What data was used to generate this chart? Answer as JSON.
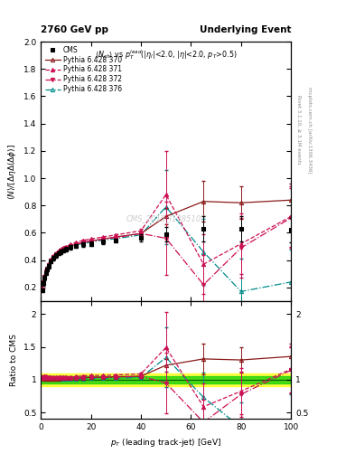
{
  "title_left": "2760 GeV pp",
  "title_right": "Underlying Event",
  "watermark": "CMS_2015_I1385107",
  "cms_x": [
    0.5,
    1.0,
    1.5,
    2.0,
    2.5,
    3.0,
    4.0,
    5.0,
    6.0,
    7.0,
    8.0,
    9.0,
    10.0,
    12.0,
    14.0,
    17.0,
    20.0,
    25.0,
    30.0,
    40.0,
    50.0,
    65.0,
    80.0,
    100.0
  ],
  "cms_y": [
    0.18,
    0.23,
    0.27,
    0.305,
    0.33,
    0.355,
    0.39,
    0.415,
    0.435,
    0.45,
    0.46,
    0.47,
    0.48,
    0.495,
    0.505,
    0.515,
    0.52,
    0.535,
    0.545,
    0.565,
    0.59,
    0.63,
    0.63,
    0.62
  ],
  "cms_yerr": [
    0.015,
    0.015,
    0.015,
    0.015,
    0.015,
    0.015,
    0.015,
    0.015,
    0.015,
    0.015,
    0.015,
    0.015,
    0.015,
    0.015,
    0.015,
    0.015,
    0.015,
    0.015,
    0.015,
    0.025,
    0.055,
    0.09,
    0.09,
    0.09
  ],
  "p370_x": [
    0.5,
    1.0,
    1.5,
    2.0,
    2.5,
    3.0,
    4.0,
    5.0,
    6.0,
    7.0,
    8.0,
    9.0,
    10.0,
    12.0,
    14.0,
    17.0,
    20.0,
    25.0,
    30.0,
    40.0,
    50.0,
    65.0,
    80.0,
    100.0
  ],
  "p370_y": [
    0.185,
    0.235,
    0.275,
    0.31,
    0.335,
    0.36,
    0.395,
    0.42,
    0.44,
    0.455,
    0.47,
    0.48,
    0.49,
    0.505,
    0.515,
    0.53,
    0.54,
    0.555,
    0.57,
    0.595,
    0.72,
    0.83,
    0.82,
    0.84
  ],
  "p370_yerr": [
    0.003,
    0.003,
    0.003,
    0.003,
    0.003,
    0.003,
    0.003,
    0.003,
    0.003,
    0.003,
    0.003,
    0.003,
    0.003,
    0.003,
    0.003,
    0.003,
    0.003,
    0.003,
    0.003,
    0.008,
    0.06,
    0.15,
    0.12,
    0.12
  ],
  "p371_x": [
    0.5,
    1.0,
    1.5,
    2.0,
    2.5,
    3.0,
    4.0,
    5.0,
    6.0,
    7.0,
    8.0,
    9.0,
    10.0,
    12.0,
    14.0,
    17.0,
    20.0,
    25.0,
    30.0,
    40.0,
    50.0,
    65.0,
    80.0,
    100.0
  ],
  "p371_y": [
    0.185,
    0.24,
    0.285,
    0.32,
    0.345,
    0.37,
    0.405,
    0.43,
    0.45,
    0.465,
    0.48,
    0.49,
    0.5,
    0.515,
    0.53,
    0.545,
    0.555,
    0.57,
    0.585,
    0.615,
    0.88,
    0.37,
    0.52,
    0.72
  ],
  "p371_yerr": [
    0.003,
    0.003,
    0.003,
    0.003,
    0.003,
    0.003,
    0.003,
    0.003,
    0.003,
    0.003,
    0.003,
    0.003,
    0.003,
    0.003,
    0.003,
    0.003,
    0.003,
    0.003,
    0.003,
    0.015,
    0.32,
    0.22,
    0.22,
    0.22
  ],
  "p372_x": [
    0.5,
    1.0,
    1.5,
    2.0,
    2.5,
    3.0,
    4.0,
    5.0,
    6.0,
    7.0,
    8.0,
    9.0,
    10.0,
    12.0,
    14.0,
    17.0,
    20.0,
    25.0,
    30.0,
    40.0,
    50.0,
    65.0,
    80.0,
    100.0
  ],
  "p372_y": [
    0.185,
    0.24,
    0.28,
    0.315,
    0.34,
    0.365,
    0.4,
    0.425,
    0.445,
    0.46,
    0.472,
    0.482,
    0.492,
    0.507,
    0.517,
    0.53,
    0.54,
    0.555,
    0.565,
    0.595,
    0.56,
    0.22,
    0.49,
    0.71
  ],
  "p372_yerr": [
    0.003,
    0.003,
    0.003,
    0.003,
    0.003,
    0.003,
    0.003,
    0.003,
    0.003,
    0.003,
    0.003,
    0.003,
    0.003,
    0.003,
    0.003,
    0.003,
    0.003,
    0.003,
    0.003,
    0.015,
    0.27,
    0.22,
    0.22,
    0.22
  ],
  "p376_x": [
    0.5,
    1.0,
    1.5,
    2.0,
    2.5,
    3.0,
    4.0,
    5.0,
    6.0,
    7.0,
    8.0,
    9.0,
    10.0,
    12.0,
    14.0,
    17.0,
    20.0,
    25.0,
    30.0,
    40.0,
    50.0,
    65.0,
    80.0,
    100.0
  ],
  "p376_y": [
    0.185,
    0.24,
    0.28,
    0.315,
    0.34,
    0.365,
    0.4,
    0.425,
    0.445,
    0.458,
    0.468,
    0.478,
    0.488,
    0.502,
    0.512,
    0.522,
    0.532,
    0.547,
    0.557,
    0.585,
    0.79,
    0.46,
    0.17,
    0.24
  ],
  "p376_yerr": [
    0.003,
    0.003,
    0.003,
    0.003,
    0.003,
    0.003,
    0.003,
    0.003,
    0.003,
    0.003,
    0.003,
    0.003,
    0.003,
    0.003,
    0.003,
    0.003,
    0.003,
    0.003,
    0.003,
    0.015,
    0.27,
    0.24,
    0.24,
    0.24
  ],
  "color_cms": "#000000",
  "color_p370": "#8b1a1a",
  "color_p371": "#cc1155",
  "color_p372": "#cc1155",
  "color_p376": "#008b8b",
  "ylim_main": [
    0.1,
    2.0
  ],
  "xlim": [
    0.0,
    100.0
  ],
  "band_green": 0.05,
  "band_yellow": 0.1
}
